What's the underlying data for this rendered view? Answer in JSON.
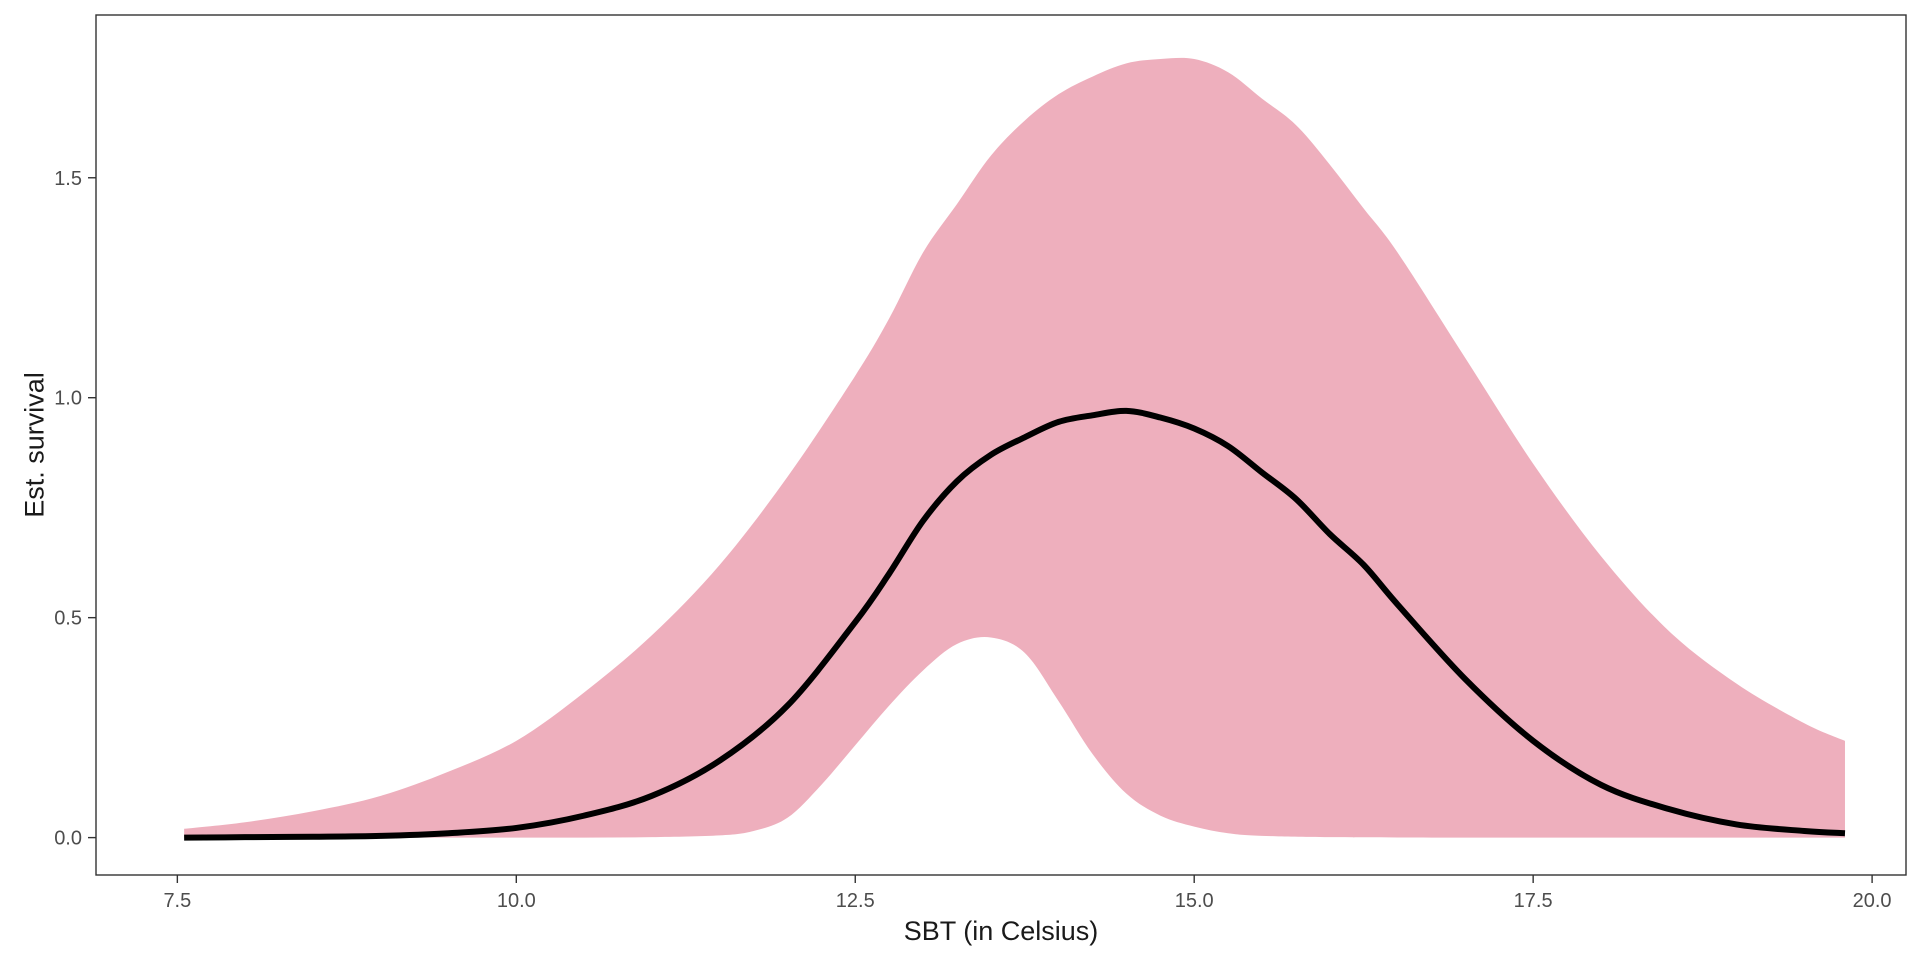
{
  "chart_data": {
    "type": "area",
    "title": "",
    "xlabel": "SBT (in Celsius)",
    "ylabel": "Est. survival",
    "xlim": [
      6.9,
      20.25
    ],
    "ylim": [
      -0.085,
      1.87
    ],
    "x_ticks": [
      7.5,
      10.0,
      12.5,
      15.0,
      17.5,
      20.0
    ],
    "x_tick_labels": [
      "7.5",
      "10.0",
      "12.5",
      "15.0",
      "17.5",
      "20.0"
    ],
    "y_ticks": [
      0.0,
      0.5,
      1.0,
      1.5
    ],
    "y_tick_labels": [
      "0.0",
      "0.5",
      "1.0",
      "1.5"
    ],
    "grid": false,
    "legend": "none",
    "colors": {
      "band": "#eeafbd",
      "line": "#000000",
      "axis": "#333333",
      "background": "#ffffff"
    },
    "series": [
      {
        "role": "estimate",
        "x": [
          7.55,
          8.0,
          8.5,
          9.0,
          9.5,
          10.0,
          10.5,
          11.0,
          11.5,
          12.0,
          12.5,
          12.75,
          13.0,
          13.25,
          13.5,
          13.75,
          14.0,
          14.25,
          14.5,
          14.75,
          15.0,
          15.25,
          15.5,
          15.75,
          16.0,
          16.25,
          16.5,
          17.0,
          17.5,
          18.0,
          18.5,
          19.0,
          19.5,
          19.8
        ],
        "y": [
          0.0,
          0.001,
          0.002,
          0.004,
          0.01,
          0.022,
          0.05,
          0.095,
          0.175,
          0.3,
          0.49,
          0.6,
          0.72,
          0.81,
          0.87,
          0.91,
          0.945,
          0.96,
          0.97,
          0.955,
          0.93,
          0.89,
          0.83,
          0.77,
          0.69,
          0.62,
          0.53,
          0.36,
          0.22,
          0.12,
          0.065,
          0.03,
          0.015,
          0.01
        ]
      },
      {
        "role": "upper_bound",
        "x": [
          7.55,
          8.0,
          8.5,
          9.0,
          9.5,
          10.0,
          10.5,
          11.0,
          11.5,
          12.0,
          12.5,
          12.75,
          13.0,
          13.25,
          13.5,
          13.75,
          14.0,
          14.25,
          14.5,
          14.75,
          15.0,
          15.25,
          15.5,
          15.75,
          16.0,
          16.25,
          16.5,
          17.0,
          17.5,
          18.0,
          18.5,
          19.0,
          19.5,
          19.8
        ],
        "y": [
          0.02,
          0.035,
          0.06,
          0.095,
          0.15,
          0.22,
          0.33,
          0.46,
          0.62,
          0.82,
          1.05,
          1.18,
          1.33,
          1.44,
          1.55,
          1.63,
          1.69,
          1.73,
          1.76,
          1.77,
          1.77,
          1.74,
          1.68,
          1.62,
          1.53,
          1.43,
          1.33,
          1.09,
          0.85,
          0.64,
          0.47,
          0.35,
          0.26,
          0.22
        ]
      },
      {
        "role": "lower_bound",
        "x": [
          7.55,
          8.0,
          8.5,
          9.0,
          9.5,
          10.0,
          10.5,
          11.0,
          11.5,
          11.75,
          12.0,
          12.25,
          12.5,
          12.75,
          13.0,
          13.25,
          13.5,
          13.75,
          14.0,
          14.25,
          14.5,
          14.75,
          15.0,
          15.25,
          15.5,
          16.0,
          17.0,
          18.0,
          19.0,
          19.8
        ],
        "y": [
          0.0,
          0.0,
          0.0,
          0.0,
          0.0,
          0.0,
          0.0,
          0.001,
          0.005,
          0.015,
          0.045,
          0.12,
          0.21,
          0.3,
          0.38,
          0.44,
          0.455,
          0.42,
          0.31,
          0.19,
          0.1,
          0.05,
          0.025,
          0.01,
          0.004,
          0.001,
          0.0,
          0.0,
          0.0,
          0.0
        ]
      }
    ]
  }
}
